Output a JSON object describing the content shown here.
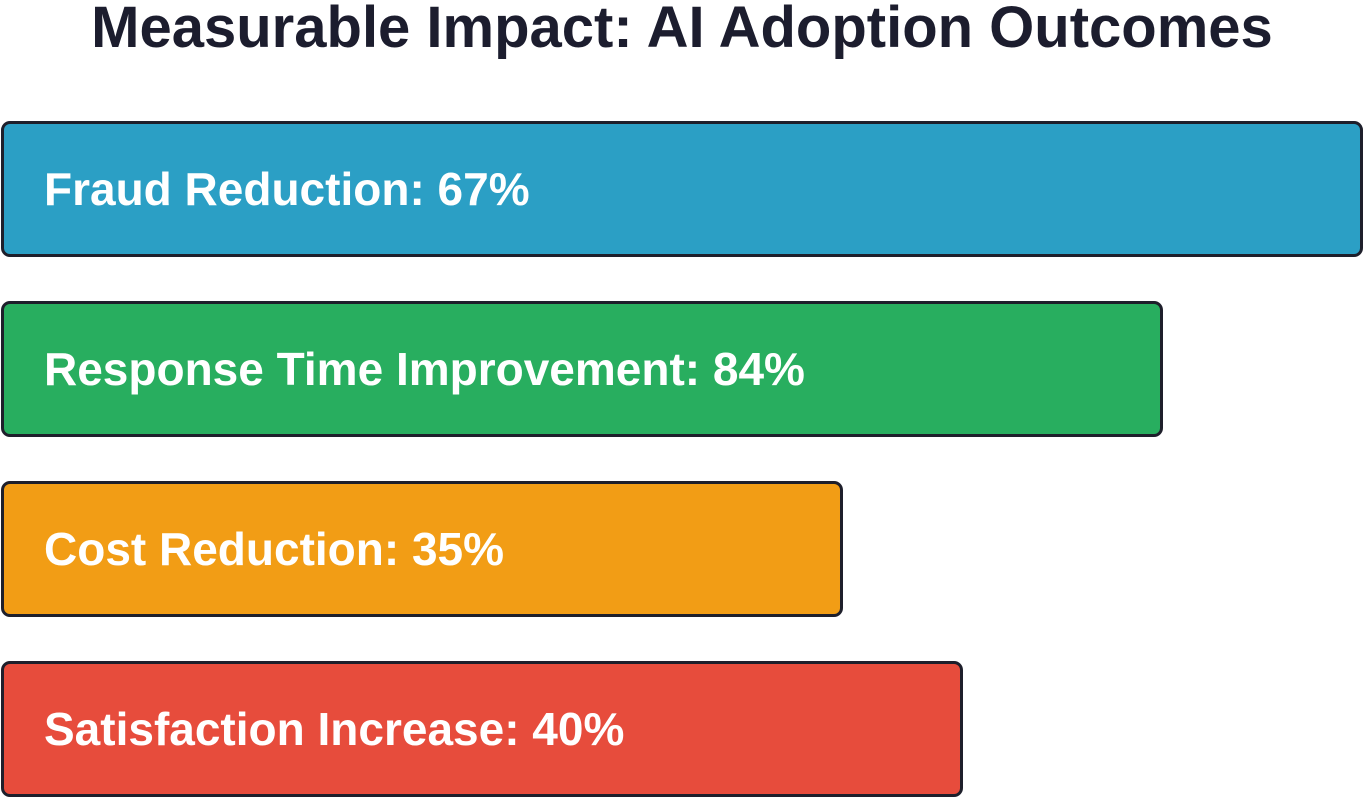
{
  "title": "Measurable Impact: AI Adoption Outcomes",
  "items": [
    {
      "label": "Fraud Reduction: 67%"
    },
    {
      "label": "Response Time Improvement: 84%"
    },
    {
      "label": "Cost Reduction: 35%"
    },
    {
      "label": "Satisfaction Increase: 40%"
    }
  ]
}
